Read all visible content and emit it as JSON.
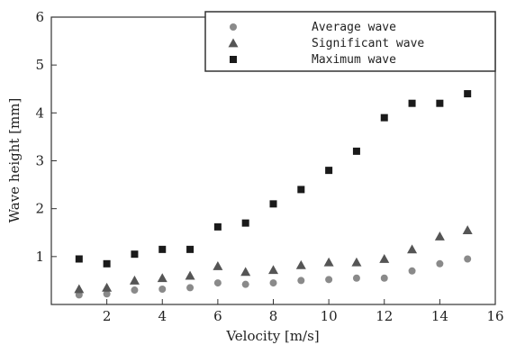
{
  "chart_data": {
    "type": "scatter",
    "title": "",
    "xlabel": "Velocity [m/s]",
    "ylabel": "Wave height [mm]",
    "xlim": [
      0,
      16
    ],
    "ylim": [
      0,
      6
    ],
    "x_ticks": [
      2,
      4,
      6,
      8,
      10,
      12,
      14,
      16
    ],
    "y_ticks": [
      1,
      2,
      3,
      4,
      5,
      6
    ],
    "grid": false,
    "legend_position": "top-right",
    "series": [
      {
        "name": "Average wave",
        "marker": "circle",
        "color": "#8a8a8a",
        "x": [
          1,
          2,
          3,
          4,
          5,
          6,
          7,
          8,
          9,
          10,
          11,
          12,
          13,
          14,
          15
        ],
        "y": [
          0.2,
          0.22,
          0.3,
          0.32,
          0.35,
          0.45,
          0.42,
          0.45,
          0.5,
          0.52,
          0.55,
          0.55,
          0.7,
          0.85,
          0.95
        ]
      },
      {
        "name": "Significant wave",
        "marker": "triangle",
        "color": "#555555",
        "x": [
          1,
          2,
          3,
          4,
          5,
          6,
          7,
          8,
          9,
          10,
          11,
          12,
          13,
          14,
          15
        ],
        "y": [
          0.32,
          0.35,
          0.5,
          0.55,
          0.6,
          0.8,
          0.68,
          0.72,
          0.82,
          0.88,
          0.88,
          0.95,
          1.15,
          1.42,
          1.55
        ]
      },
      {
        "name": "Maximum wave",
        "marker": "square",
        "color": "#1a1a1a",
        "x": [
          1,
          2,
          3,
          4,
          5,
          6,
          7,
          8,
          9,
          10,
          11,
          12,
          13,
          14,
          15
        ],
        "y": [
          0.95,
          0.85,
          1.05,
          1.15,
          1.15,
          1.62,
          1.7,
          2.1,
          2.4,
          2.8,
          3.2,
          3.9,
          4.2,
          4.2,
          4.4
        ]
      }
    ]
  }
}
